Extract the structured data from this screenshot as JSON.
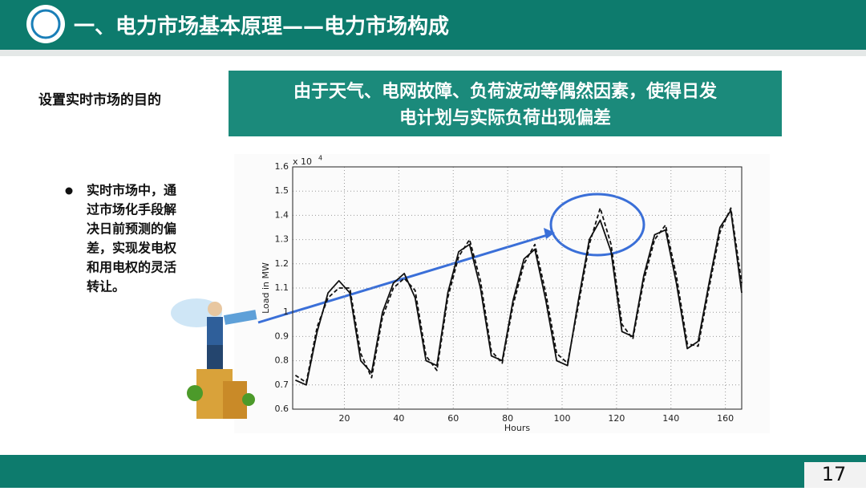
{
  "header": {
    "title": "一、电力市场基本原理——电力市场构成"
  },
  "purpose_label": "设置实时市场的目的",
  "purpose_box": {
    "lines": [
      "由于天气、电网故障、负荷波动等偶然因素，使得日发",
      "电计划与实际负荷出现偏差"
    ]
  },
  "bullet": {
    "lines": [
      "实时市场中，通",
      "过市场化手段解",
      "决日前预测的偏",
      "差，实现发电权",
      "和用电权的灵活",
      "转让。"
    ]
  },
  "page_number": "17",
  "chart_data": {
    "type": "line",
    "xlabel": "Hours",
    "ylabel": "Load in MW",
    "y_multiplier": {
      "base": "x 10",
      "exponent": "4"
    },
    "x": [
      2,
      6,
      10,
      14,
      18,
      22,
      26,
      30,
      34,
      38,
      42,
      46,
      50,
      54,
      58,
      62,
      66,
      70,
      74,
      78,
      82,
      86,
      90,
      94,
      98,
      102,
      106,
      110,
      114,
      118,
      122,
      126,
      130,
      134,
      138,
      142,
      146,
      150,
      154,
      158,
      162,
      166
    ],
    "series": [
      {
        "color": "#111111",
        "style": "solid",
        "values": [
          0.72,
          0.7,
          0.92,
          1.08,
          1.13,
          1.08,
          0.8,
          0.75,
          1.0,
          1.12,
          1.16,
          1.06,
          0.8,
          0.78,
          1.08,
          1.25,
          1.28,
          1.1,
          0.82,
          0.8,
          1.05,
          1.22,
          1.26,
          1.05,
          0.8,
          0.78,
          1.05,
          1.3,
          1.38,
          1.25,
          0.92,
          0.9,
          1.15,
          1.32,
          1.34,
          1.12,
          0.85,
          0.88,
          1.12,
          1.35,
          1.42,
          1.08
        ]
      },
      {
        "color": "#111111",
        "style": "dashed",
        "values": [
          0.74,
          0.71,
          0.94,
          1.06,
          1.1,
          1.1,
          0.83,
          0.73,
          0.98,
          1.1,
          1.14,
          1.09,
          0.82,
          0.76,
          1.06,
          1.23,
          1.3,
          1.13,
          0.84,
          0.79,
          1.03,
          1.2,
          1.28,
          1.08,
          0.83,
          0.79,
          1.03,
          1.28,
          1.43,
          1.28,
          0.95,
          0.89,
          1.13,
          1.3,
          1.36,
          1.15,
          0.87,
          0.86,
          1.1,
          1.33,
          1.43,
          1.12
        ]
      }
    ],
    "xlim": [
      1,
      166
    ],
    "ylim": [
      0.6,
      1.6
    ],
    "xticks": [
      20,
      40,
      60,
      80,
      100,
      120,
      140,
      160
    ],
    "yticks": [
      0.6,
      0.7,
      0.8,
      0.9,
      1,
      1.1,
      1.2,
      1.3,
      1.4,
      1.5,
      1.6
    ],
    "grid": true
  }
}
